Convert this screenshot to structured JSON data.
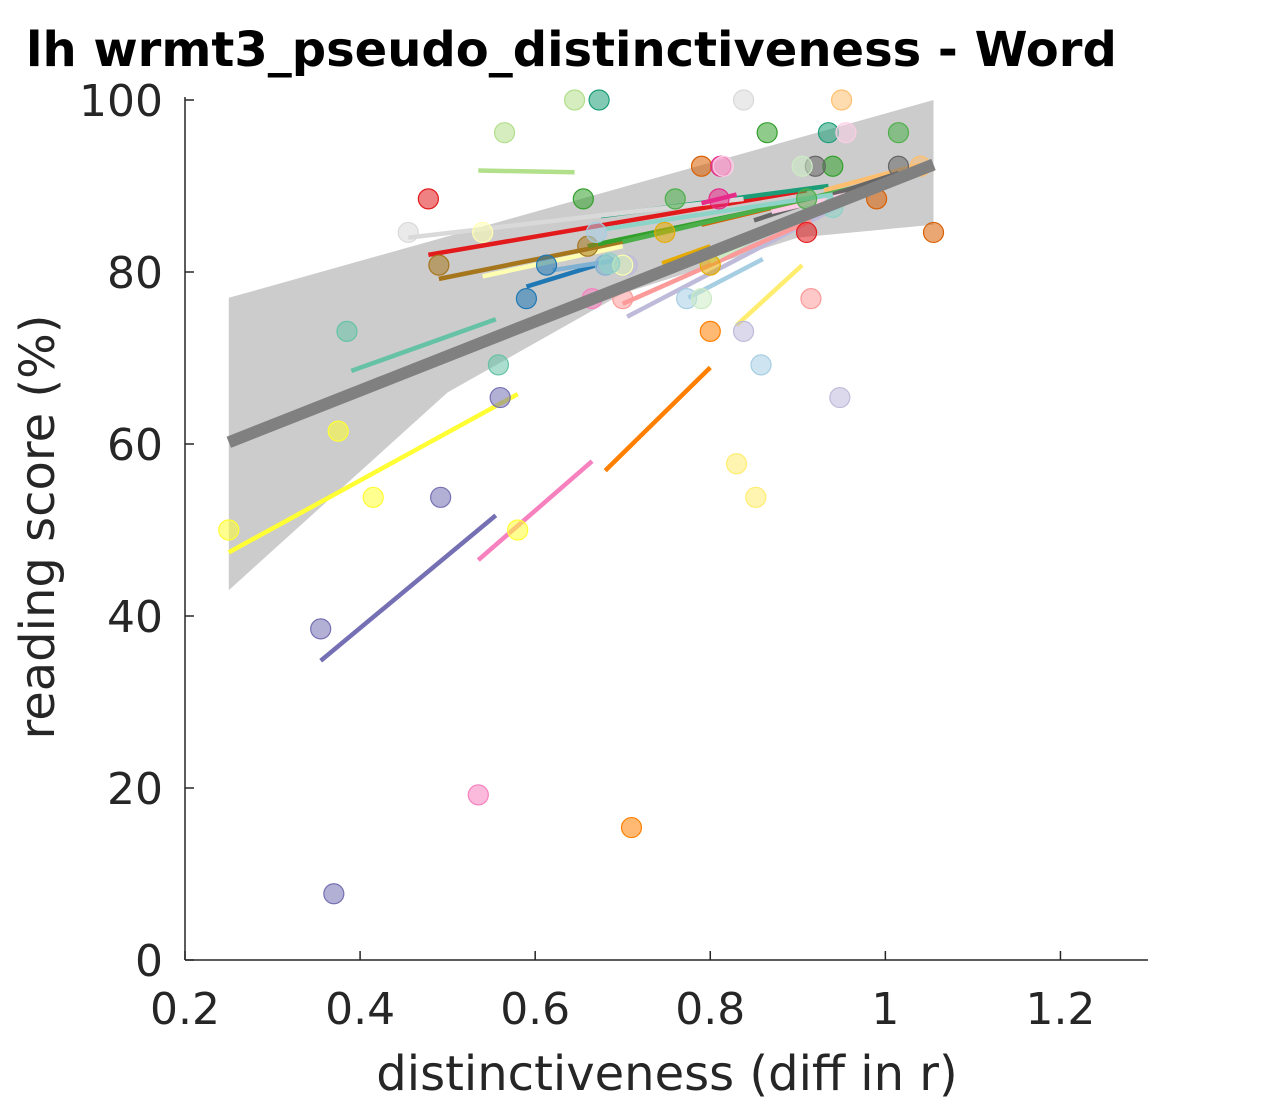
{
  "chart_data": {
    "type": "scatter",
    "title": "lh wrmt3_pseudo_distinctiveness - Word",
    "xlabel": "distinctiveness (diff in r)",
    "ylabel": "reading score (%)",
    "xlim": [
      0.2,
      1.3
    ],
    "ylim": [
      0,
      100
    ],
    "xticks": [
      "0.2",
      "0.4",
      "0.6",
      "0.8",
      "1",
      "1.2"
    ],
    "yticks": [
      "0",
      "20",
      "40",
      "60",
      "80",
      "100"
    ],
    "grid": false,
    "legend": "none",
    "fit": {
      "color": "#808080",
      "band_color": "#cccccc",
      "line": [
        [
          0.25,
          60.2
        ],
        [
          1.055,
          92.5
        ]
      ],
      "band_upper": [
        [
          0.25,
          77
        ],
        [
          1.055,
          100
        ]
      ],
      "band_lower": [
        [
          0.25,
          43
        ],
        [
          0.5,
          66
        ],
        [
          0.7,
          77.5
        ],
        [
          0.9,
          84
        ],
        [
          1.055,
          85.5
        ]
      ]
    },
    "series": [
      {
        "color": "#7570b3",
        "points": [
          [
            0.355,
            38.5
          ],
          [
            0.37,
            7.7
          ],
          [
            0.492,
            53.8
          ],
          [
            0.56,
            65.4
          ]
        ],
        "line": [
          [
            0.355,
            34.8
          ],
          [
            0.555,
            51.7
          ]
        ]
      },
      {
        "color": "#ffff33",
        "points": [
          [
            0.25,
            50
          ],
          [
            0.375,
            61.5
          ],
          [
            0.415,
            53.8
          ],
          [
            0.58,
            50
          ]
        ],
        "line": [
          [
            0.25,
            47.4
          ],
          [
            0.58,
            65.8
          ]
        ]
      },
      {
        "color": "#f781bf",
        "points": [
          [
            0.535,
            19.2
          ],
          [
            0.665,
            76.9
          ]
        ],
        "line": [
          [
            0.535,
            46.5
          ],
          [
            0.665,
            58
          ]
        ]
      },
      {
        "color": "#ff7f00",
        "points": [
          [
            0.71,
            15.4
          ],
          [
            0.8,
            73.1
          ]
        ],
        "line": [
          [
            0.68,
            56.9
          ],
          [
            0.8,
            68.9
          ]
        ]
      },
      {
        "color": "#66c2a5",
        "points": [
          [
            0.385,
            73.1
          ],
          [
            0.558,
            69.2
          ]
        ],
        "line": [
          [
            0.39,
            68.5
          ],
          [
            0.555,
            74.5
          ]
        ]
      },
      {
        "color": "#ffed6f",
        "points": [
          [
            0.83,
            57.7
          ],
          [
            0.852,
            53.8
          ]
        ],
        "line": [
          [
            0.83,
            73.8
          ],
          [
            0.905,
            80.8
          ]
        ]
      },
      {
        "color": "#bebada",
        "points": [
          [
            0.838,
            73.1
          ],
          [
            0.948,
            65.4
          ],
          [
            0.705,
            80.8
          ]
        ],
        "line": [
          [
            0.705,
            74.8
          ],
          [
            0.948,
            87.7
          ]
        ]
      },
      {
        "color": "#e31a1c",
        "points": [
          [
            0.478,
            88.5
          ],
          [
            0.91,
            84.6
          ]
        ],
        "line": [
          [
            0.478,
            82
          ],
          [
            0.91,
            89.5
          ]
        ]
      },
      {
        "color": "#a6761d",
        "points": [
          [
            0.49,
            80.8
          ],
          [
            0.66,
            83
          ]
        ],
        "line": [
          [
            0.49,
            79.2
          ],
          [
            0.7,
            83.5
          ]
        ]
      },
      {
        "color": "#b2df8a",
        "points": [
          [
            0.565,
            96.2
          ],
          [
            0.645,
            100
          ]
        ],
        "line": [
          [
            0.535,
            91.8
          ],
          [
            0.645,
            91.6
          ]
        ]
      },
      {
        "color": "#1b9e77",
        "points": [
          [
            0.673,
            100
          ],
          [
            0.935,
            96.2
          ]
        ],
        "line": [
          [
            0.675,
            86.5
          ],
          [
            0.935,
            90
          ]
        ]
      },
      {
        "color": "#d9d9d9",
        "points": [
          [
            0.455,
            84.6
          ],
          [
            0.838,
            100
          ]
        ],
        "line": [
          [
            0.455,
            84
          ],
          [
            0.838,
            88.5
          ]
        ]
      },
      {
        "color": "#33a02c",
        "points": [
          [
            0.655,
            88.5
          ],
          [
            0.865,
            96.2
          ],
          [
            0.94,
            92.3
          ]
        ],
        "line": [
          [
            0.66,
            83
          ],
          [
            0.94,
            89
          ]
        ]
      },
      {
        "color": "#fb9a99",
        "points": [
          [
            0.7,
            76.9
          ],
          [
            0.915,
            76.9
          ]
        ],
        "line": [
          [
            0.7,
            76.3
          ],
          [
            0.915,
            86
          ]
        ]
      },
      {
        "color": "#1f78b4",
        "points": [
          [
            0.59,
            76.9
          ],
          [
            0.613,
            80.8
          ]
        ],
        "line": [
          [
            0.59,
            78.3
          ],
          [
            0.67,
            80.8
          ]
        ]
      },
      {
        "color": "#a6cee3",
        "points": [
          [
            0.67,
            84.6
          ],
          [
            0.773,
            76.9
          ],
          [
            0.858,
            69.2
          ]
        ],
        "line": [
          [
            0.775,
            77
          ],
          [
            0.86,
            81.5
          ]
        ]
      },
      {
        "color": "#e6ab02",
        "points": [
          [
            0.748,
            84.6
          ],
          [
            0.8,
            80.8
          ]
        ],
        "line": [
          [
            0.745,
            81
          ],
          [
            0.8,
            83
          ]
        ]
      },
      {
        "color": "#fdbf6f",
        "points": [
          [
            0.95,
            100
          ],
          [
            1.04,
            92.3
          ]
        ],
        "line": [
          [
            0.93,
            89.5
          ],
          [
            1.04,
            92.5
          ]
        ]
      },
      {
        "color": "#d95f02",
        "points": [
          [
            0.99,
            88.5
          ],
          [
            1.055,
            84.6
          ],
          [
            0.79,
            92.3
          ]
        ],
        "line": [
          [
            0.79,
            85.5
          ],
          [
            1.055,
            92
          ]
        ]
      },
      {
        "color": "#4daf4a",
        "points": [
          [
            1.015,
            96.2
          ],
          [
            0.91,
            88.5
          ],
          [
            0.76,
            88.5
          ]
        ],
        "line": [
          [
            0.7,
            83.5
          ],
          [
            1.015,
            91
          ]
        ]
      },
      {
        "color": "#666666",
        "points": [
          [
            0.92,
            92.3
          ],
          [
            1.015,
            92.3
          ]
        ],
        "line": [
          [
            0.85,
            86
          ],
          [
            1.015,
            91.5
          ]
        ]
      },
      {
        "color": "#e7298a",
        "points": [
          [
            0.81,
            88.5
          ],
          [
            0.812,
            92.3
          ]
        ],
        "line": [
          [
            0.79,
            88
          ],
          [
            0.83,
            89
          ]
        ]
      },
      {
        "color": "#80b1d3",
        "points": [
          [
            0.68,
            80.8
          ],
          [
            0.7,
            80.8
          ]
        ],
        "line": [
          [
            0.62,
            80.2
          ],
          [
            0.7,
            81.5
          ]
        ]
      },
      {
        "color": "#ccebc5",
        "points": [
          [
            0.79,
            76.9
          ],
          [
            0.905,
            92.3
          ]
        ],
        "line": [
          [
            0.8,
            81.2
          ],
          [
            0.905,
            86.8
          ]
        ]
      },
      {
        "color": "#fccde5",
        "points": [
          [
            0.955,
            96.2
          ],
          [
            0.815,
            92.3
          ]
        ],
        "line": [
          [
            0.87,
            87
          ],
          [
            0.955,
            89
          ]
        ]
      },
      {
        "color": "#ffffb3",
        "points": [
          [
            0.54,
            84.6
          ],
          [
            0.7,
            80.8
          ]
        ],
        "line": [
          [
            0.54,
            79.5
          ],
          [
            0.7,
            83
          ]
        ]
      },
      {
        "color": "#8dd3c7",
        "points": [
          [
            0.685,
            81
          ],
          [
            0.94,
            87.5
          ]
        ],
        "line": [
          [
            0.68,
            85
          ],
          [
            0.94,
            89
          ]
        ]
      }
    ]
  }
}
